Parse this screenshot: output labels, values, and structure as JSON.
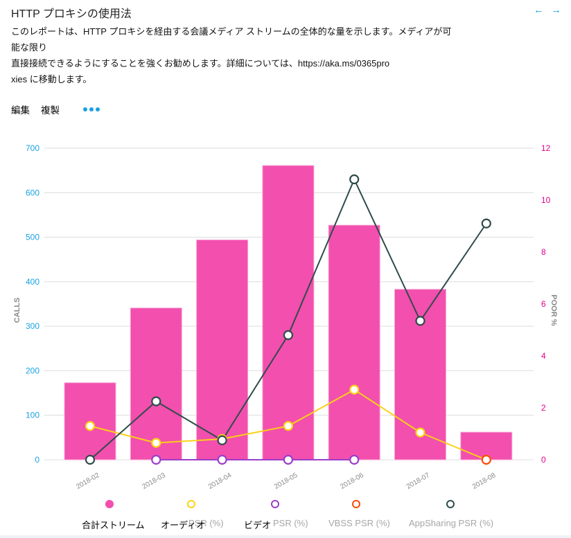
{
  "header": {
    "title": "HTTP プロキシの使用法",
    "nav_back_icon": "arrow-left-icon",
    "nav_forward_icon": "arrow-right-icon",
    "nav_back": "←",
    "nav_forward": "→"
  },
  "description": {
    "line1": "このレポートは、HTTP プロキシを経由する会議メディア ストリームの全体的な量を示します。メディアが可能な限り",
    "line2": "直接接続できるようにすることを強くお勧めします。詳細については、https://aka.ms/0365pro",
    "line3": "xies に移動します。"
  },
  "toolbar": {
    "edit": "編集",
    "duplicate": "複製",
    "more_icon": "more-dots-icon"
  },
  "colors": {
    "accent": "#1aa1e1",
    "bar": "#f24fae",
    "audio": "#fcd116",
    "video": "#9b3ec8",
    "vbss": "#fa4b06",
    "appsharing": "#2f4b4b",
    "left_axis": "#1aa1e1",
    "right_axis": "#e3008c",
    "grid": "#dcdcdc"
  },
  "legend": {
    "total": "合計ストリーム",
    "audio_jp": "オーディオ",
    "audio_psr": "PSR (%)",
    "video_jp": "ビデオ",
    "video_psr": "PSR (%)",
    "vbss": "VBSS PSR (%)",
    "appsharing": "AppSharing PSR (%)"
  },
  "chart_data": {
    "type": "bar",
    "title": "HTTP プロキシの使用法",
    "categories": [
      "2018-02",
      "2018-03",
      "2018-04",
      "2018-05",
      "2018-06",
      "2018-07",
      "2018-08"
    ],
    "ylabel": "CALLS",
    "ylabel_right": "POOR %",
    "ylim": [
      0,
      700
    ],
    "yticks": [
      0,
      100,
      200,
      300,
      400,
      500,
      600,
      700
    ],
    "ylim_right": [
      0,
      12
    ],
    "yticks_right": [
      0,
      2,
      4,
      6,
      8,
      10,
      12
    ],
    "grid": true,
    "legend_position": "bottom",
    "series": [
      {
        "name": "合計ストリーム",
        "type": "bar",
        "axis": "left",
        "values": [
          173,
          341,
          494,
          661,
          527,
          383,
          62
        ]
      },
      {
        "name": "オーディオ PSR (%)",
        "type": "line",
        "axis": "right",
        "values": [
          1.3,
          0.65,
          0.8,
          1.3,
          2.7,
          1.05,
          0
        ]
      },
      {
        "name": "ビデオ PSR (%)",
        "type": "line",
        "axis": "right",
        "values": [
          null,
          0,
          0,
          0,
          0,
          null,
          null
        ]
      },
      {
        "name": "VBSS PSR (%)",
        "type": "line",
        "axis": "right",
        "values": [
          null,
          null,
          null,
          null,
          null,
          null,
          0
        ]
      },
      {
        "name": "AppSharing PSR (%)",
        "type": "line",
        "axis": "right",
        "values": [
          0,
          2.25,
          0.75,
          4.8,
          10.8,
          5.35,
          9.1
        ]
      }
    ]
  }
}
